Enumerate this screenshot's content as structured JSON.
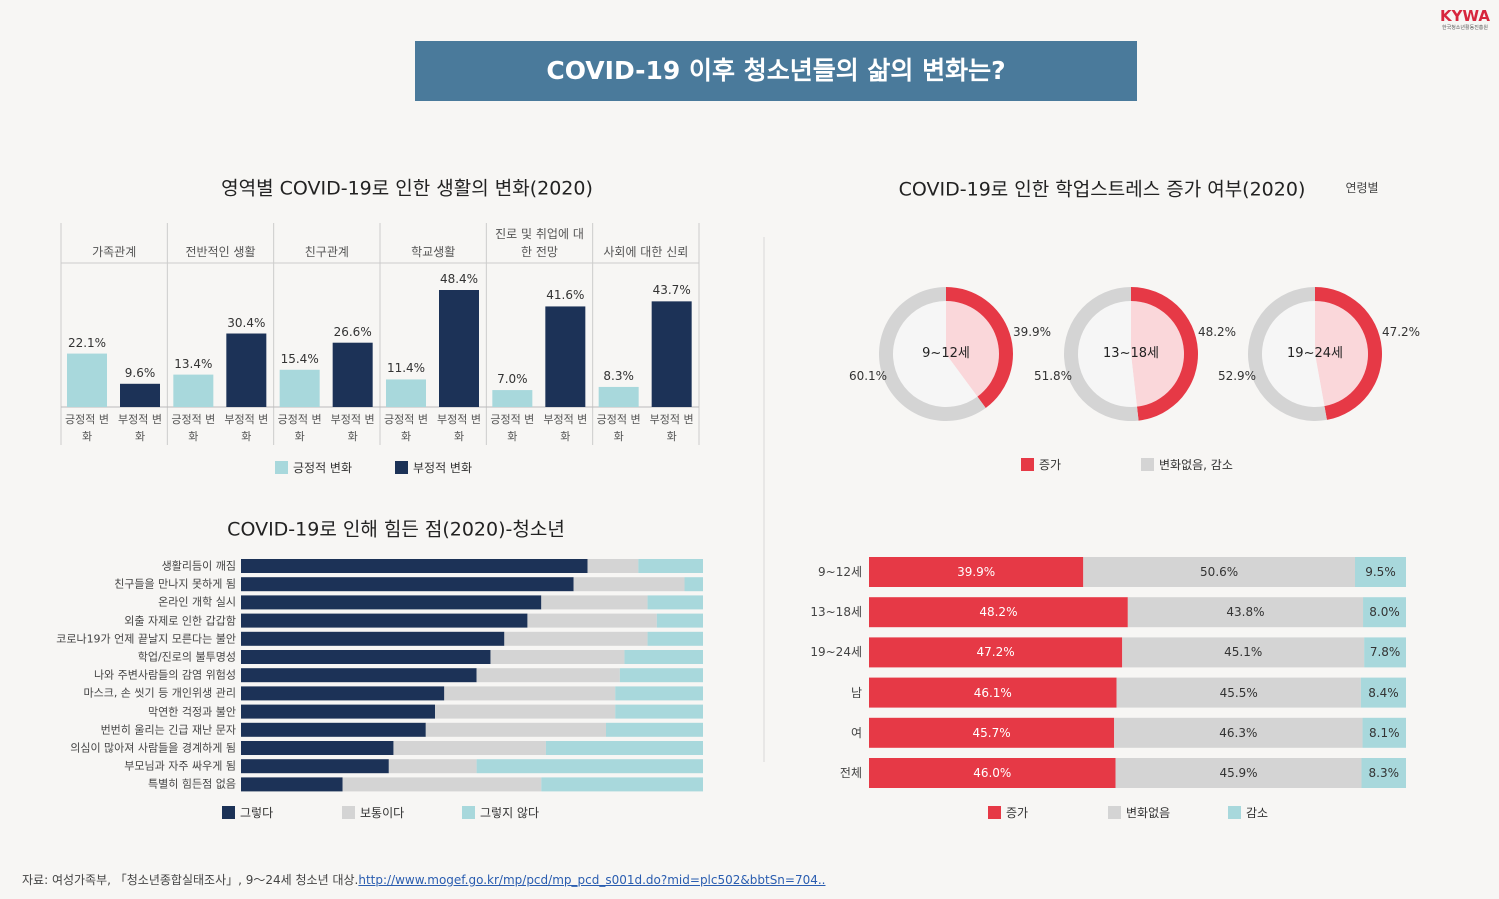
{
  "header": {
    "logo": "KYWA",
    "logo_sub": "한국청소년활동진흥원",
    "title": "COVID-19 이후 청소년들의 삶의 변화는?"
  },
  "chart_data": [
    {
      "type": "bar",
      "title": "영역별 COVID-19로 인한 생활의 변화(2020)",
      "categories": [
        "가족관계",
        "전반적인 생활",
        "친구관계",
        "학교생활",
        "진로 및 취업에 대한 전망",
        "사회에 대한 신뢰"
      ],
      "series": [
        {
          "name": "긍정적 변화",
          "color": "#a8d8dc",
          "values": [
            22.1,
            13.4,
            15.4,
            11.4,
            7.0,
            8.3
          ],
          "value_labels": [
            "22.1%",
            "13.4%",
            "15.4%",
            "11.4%",
            "7.0%",
            "8.3%"
          ]
        },
        {
          "name": "부정적 변화",
          "color": "#1c3257",
          "values": [
            9.6,
            30.4,
            26.6,
            48.4,
            41.6,
            43.7
          ],
          "value_labels": [
            "9.6%",
            "30.4%",
            "26.6%",
            "48.4%",
            "41.6%",
            "43.7%"
          ]
        }
      ]
    },
    {
      "type": "donut",
      "title": "COVID-19로 인한 학업스트레스 증가 여부(2020)",
      "note": "연령별",
      "categories": [
        "9~12세",
        "13~18세",
        "19~24세"
      ],
      "series": [
        {
          "name": "증가",
          "color": "#e63946",
          "values": [
            39.9,
            48.2,
            47.2
          ],
          "value_labels": [
            "39.9%",
            "48.2%",
            "47.2%"
          ]
        },
        {
          "name": "변화없음, 감소",
          "color": "#d4d4d4",
          "values": [
            60.1,
            51.8,
            52.9
          ],
          "value_labels": [
            "60.1%",
            "51.8%",
            "52.9%"
          ]
        }
      ]
    },
    {
      "type": "barh",
      "title": "COVID-19로 인해 힘든 점(2020)-청소년",
      "categories": [
        "생활리듬이 깨짐",
        "친구들을 만나지 못하게 됨",
        "온라인 개학 실시",
        "외출 자제로 인한 갑갑함",
        "코로나19가 언제 끝날지 모른다는 불안",
        "학업/진로의 불투명성",
        "나와 주변사람들의 감염 위험성",
        "마스크, 손 씻기 등 개인위생 관리",
        "막연한 걱정과 불안",
        "번번히 울리는 긴급 재난 문자",
        "의심이 많아져 사람들을 경계하게 됨",
        "부모님과 자주 싸우게 됨",
        "특별히 힘든점 없음"
      ],
      "series": [
        {
          "name": "그렇다",
          "color": "#1c3257",
          "values": [
            75,
            72,
            65,
            62,
            57,
            54,
            51,
            44,
            42,
            40,
            33,
            32,
            22
          ]
        },
        {
          "name": "보통이다",
          "color": "#d4d4d4",
          "values": [
            11,
            24,
            23,
            28,
            31,
            29,
            31,
            37,
            39,
            39,
            33,
            19,
            43
          ]
        },
        {
          "name": "그렇지 않다",
          "color": "#a8d8dc",
          "values": [
            14,
            4,
            12,
            10,
            12,
            17,
            18,
            19,
            19,
            21,
            34,
            49,
            35
          ]
        }
      ]
    },
    {
      "type": "barh",
      "categories": [
        "9~12세",
        "13~18세",
        "19~24세",
        "남",
        "여",
        "전체"
      ],
      "series": [
        {
          "name": "증가",
          "color": "#e63946",
          "values": [
            39.9,
            48.2,
            47.2,
            46.1,
            45.7,
            46.0
          ],
          "value_labels": [
            "39.9%",
            "48.2%",
            "47.2%",
            "46.1%",
            "45.7%",
            "46.0%"
          ]
        },
        {
          "name": "변화없음",
          "color": "#d4d4d4",
          "values": [
            50.6,
            43.8,
            45.1,
            45.5,
            46.3,
            45.9
          ],
          "value_labels": [
            "50.6%",
            "43.8%",
            "45.1%",
            "45.5%",
            "46.3%",
            "45.9%"
          ]
        },
        {
          "name": "감소",
          "color": "#a8d8dc",
          "values": [
            9.5,
            8.0,
            7.8,
            8.4,
            8.1,
            8.3
          ],
          "value_labels": [
            "9.5%",
            "8.0%",
            "7.8%",
            "8.4%",
            "8.1%",
            "8.3%"
          ]
        }
      ]
    }
  ],
  "footer": {
    "source": "자료: 여성가족부, 「청소년종합실태조사」, 9～24세 청소년 대상.",
    "link": "http://www.mogef.go.kr/mp/pcd/mp_pcd_s001d.do?mid=plc502&bbtSn=704.."
  }
}
